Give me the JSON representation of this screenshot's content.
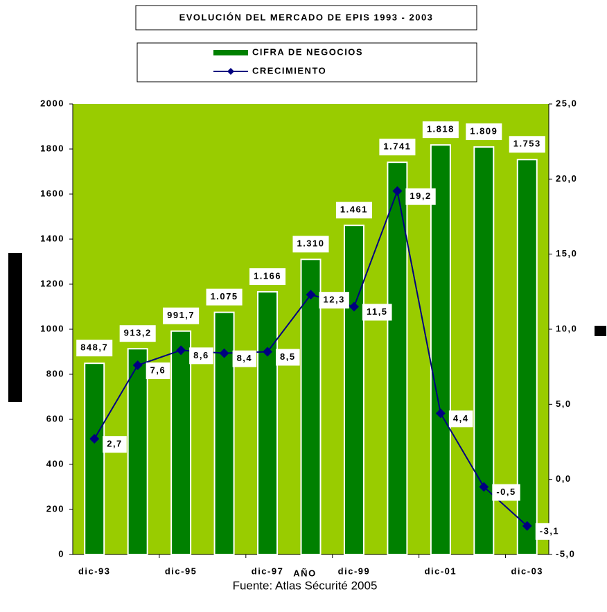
{
  "chart_data": {
    "type": "bar",
    "title": "EVOLUCIÓN DEL MERCADO DE EPIS 1993 - 2003",
    "x_label": "AÑO",
    "source": "Fuente: Atlas Sécurité 2005",
    "categories": [
      "dic-93",
      null,
      "dic-95",
      null,
      "dic-97",
      null,
      "dic-99",
      null,
      "dic-01",
      null,
      "dic-03"
    ],
    "series": [
      {
        "name": "CIFRA DE NEGOCIOS",
        "type": "bar",
        "color": "#008000",
        "values": [
          848.7,
          913.2,
          991.7,
          1075,
          1166,
          1310,
          1461,
          1741,
          1818,
          1809,
          1753
        ],
        "value_labels": [
          "848,7",
          "913,2",
          "991,7",
          "1.075",
          "1.166",
          "1.310",
          "1.461",
          "1.741",
          "1.818",
          "1.809",
          "1.753"
        ]
      },
      {
        "name": "CRECIMIENTO",
        "type": "line",
        "axis": "y2",
        "color": "#000080",
        "values": [
          2.7,
          7.6,
          8.6,
          8.4,
          8.5,
          12.3,
          11.5,
          19.2,
          4.4,
          -0.5,
          -3.1
        ],
        "value_labels": [
          "2,7",
          "7,6",
          "8,6",
          "8,4",
          "8,5",
          "12,3",
          "11,5",
          "19,2",
          "4,4",
          "-0,5",
          "-3,1"
        ]
      }
    ],
    "ylim": [
      0,
      2000
    ],
    "yticks": [
      0,
      200,
      400,
      600,
      800,
      1000,
      1200,
      1400,
      1600,
      1800,
      2000
    ],
    "y2lim": [
      -5,
      25
    ],
    "y2ticks": [
      {
        "value": -5,
        "label": "-5,0"
      },
      {
        "value": 0,
        "label": "0,0"
      },
      {
        "value": 5,
        "label": "5,0"
      },
      {
        "value": 10,
        "label": "10,0"
      },
      {
        "value": 15,
        "label": "15,0"
      },
      {
        "value": 20,
        "label": "20,0"
      },
      {
        "value": 25,
        "label": "25,0"
      }
    ],
    "background": "#99cc00"
  }
}
